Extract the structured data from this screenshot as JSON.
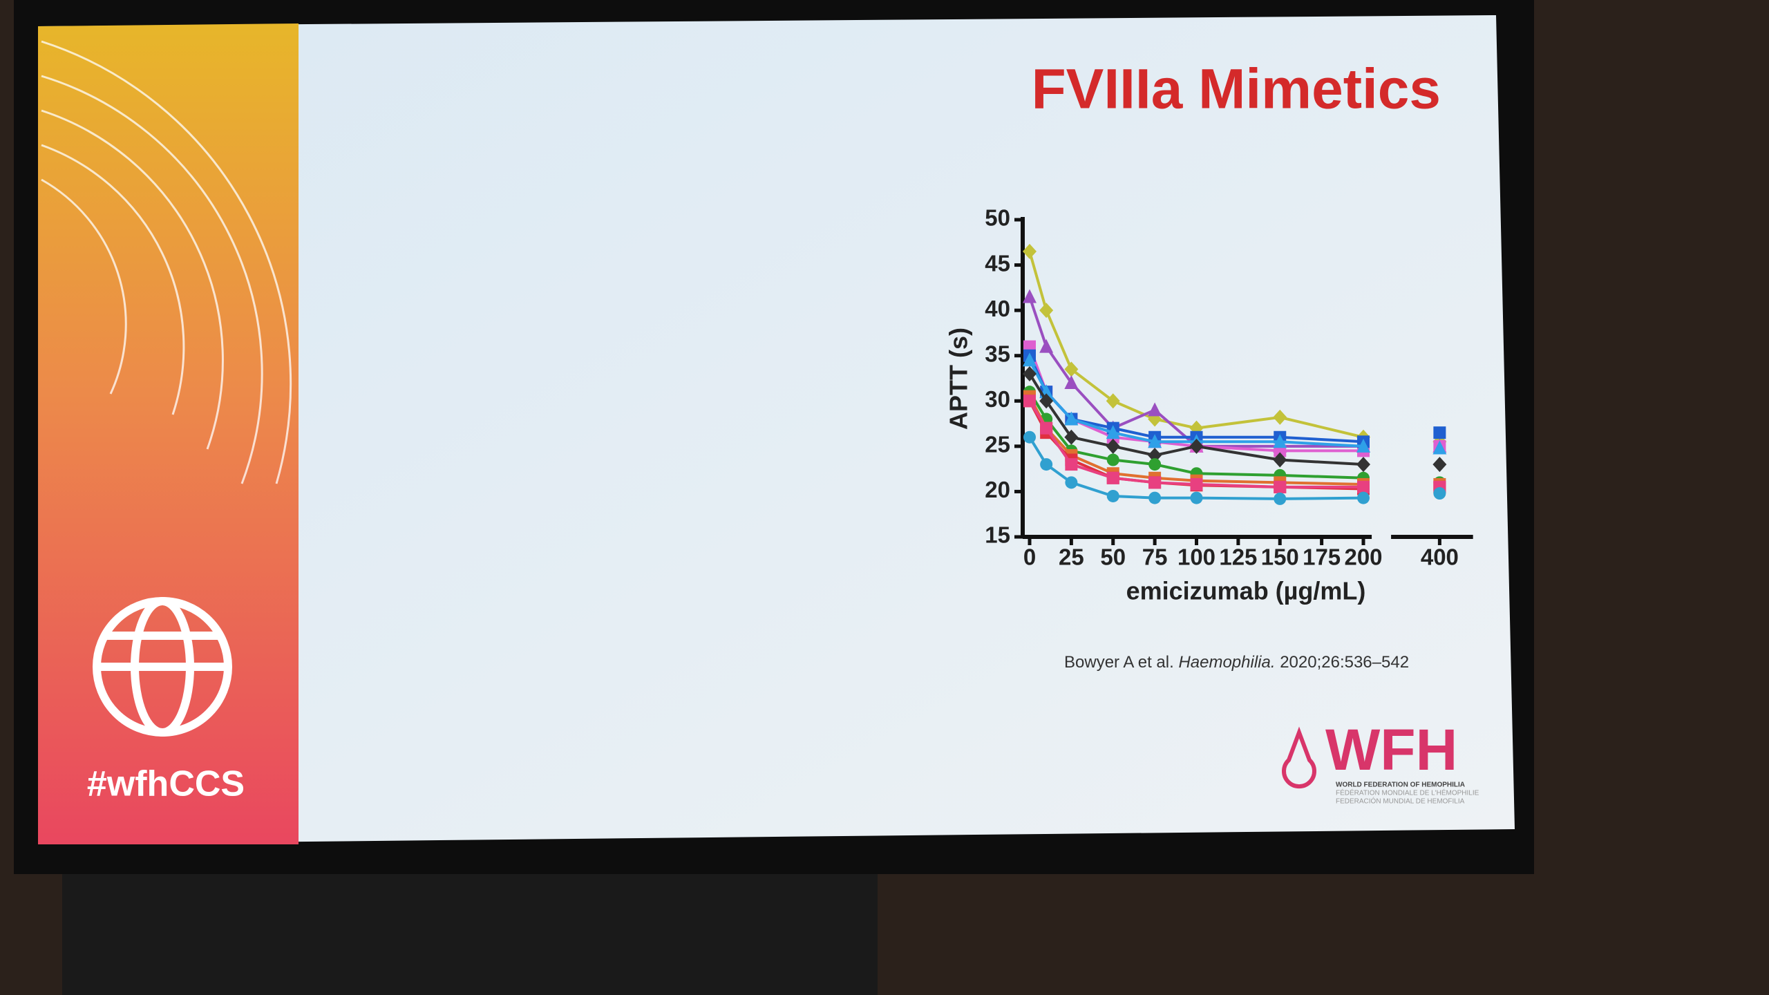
{
  "slide": {
    "title": "FVIIIa Mimetics",
    "hashtag": "#wfhCCS",
    "citation": {
      "authors": "Bowyer A et al.",
      "journal": "Haemophilia.",
      "details": "2020;26:536–542"
    },
    "logo": {
      "name": "WFH",
      "line1": "WORLD FEDERATION OF HEMOPHILIA",
      "line2": "FÉDÉRATION MONDIALE DE L'HÉMOPHILIE",
      "line3": "FEDERACIÓN MUNDIAL DE HEMOFILIA"
    }
  },
  "chart_data": {
    "type": "line",
    "x_label": "emicizumab (µg/mL)",
    "y_label": "APTT (s)",
    "x": [
      0,
      10,
      25,
      50,
      75,
      100,
      150,
      200,
      400
    ],
    "xlim": [
      0,
      420
    ],
    "xbreak": [
      205,
      380
    ],
    "xticks": [
      0,
      25,
      50,
      75,
      100,
      125,
      150,
      175,
      200,
      400
    ],
    "ylim": [
      15,
      50
    ],
    "yticks": [
      15,
      20,
      25,
      30,
      35,
      40,
      45,
      50
    ],
    "series": [
      {
        "color": "#c3c23a",
        "marker": "diamond",
        "values": [
          46.5,
          40,
          33.5,
          30,
          28,
          27,
          28.2,
          26,
          25.5
        ]
      },
      {
        "color": "#9a4fc0",
        "marker": "triangle",
        "values": [
          41.5,
          36,
          32,
          27,
          29,
          25,
          25,
          25,
          25
        ]
      },
      {
        "color": "#de5fd0",
        "marker": "square",
        "values": [
          36,
          31,
          28,
          26,
          25.5,
          25,
          24.5,
          24.5,
          25
        ]
      },
      {
        "color": "#1f5fd0",
        "marker": "square",
        "values": [
          35,
          31,
          28,
          27,
          26,
          26,
          26,
          25.5,
          26.5
        ]
      },
      {
        "color": "#2fa0e8",
        "marker": "triangle",
        "values": [
          34.5,
          31,
          28,
          26.5,
          25.5,
          25.5,
          25.5,
          25,
          24.8
        ]
      },
      {
        "color": "#333333",
        "marker": "diamond",
        "values": [
          33,
          30,
          26,
          25,
          24,
          25,
          23.5,
          23,
          23
        ]
      },
      {
        "color": "#2fa030",
        "marker": "circle",
        "values": [
          31,
          28,
          24.5,
          23.5,
          23,
          22,
          21.8,
          21.5,
          21
        ]
      },
      {
        "color": "#e07030",
        "marker": "square",
        "values": [
          30.5,
          27,
          24,
          22,
          21.5,
          21.2,
          21,
          20.8,
          20.8
        ]
      },
      {
        "color": "#e03040",
        "marker": "square",
        "values": [
          30,
          26.5,
          23.5,
          21.5,
          21,
          20.7,
          20.5,
          20.3,
          20.5
        ]
      },
      {
        "color": "#e84080",
        "marker": "square",
        "values": [
          30,
          27,
          23,
          21.5,
          21,
          20.8,
          20.5,
          20.5,
          20.5
        ]
      },
      {
        "color": "#30a0d0",
        "marker": "circle",
        "values": [
          26,
          23,
          21,
          19.5,
          19.3,
          19.3,
          19.2,
          19.3,
          19.8
        ]
      }
    ]
  }
}
